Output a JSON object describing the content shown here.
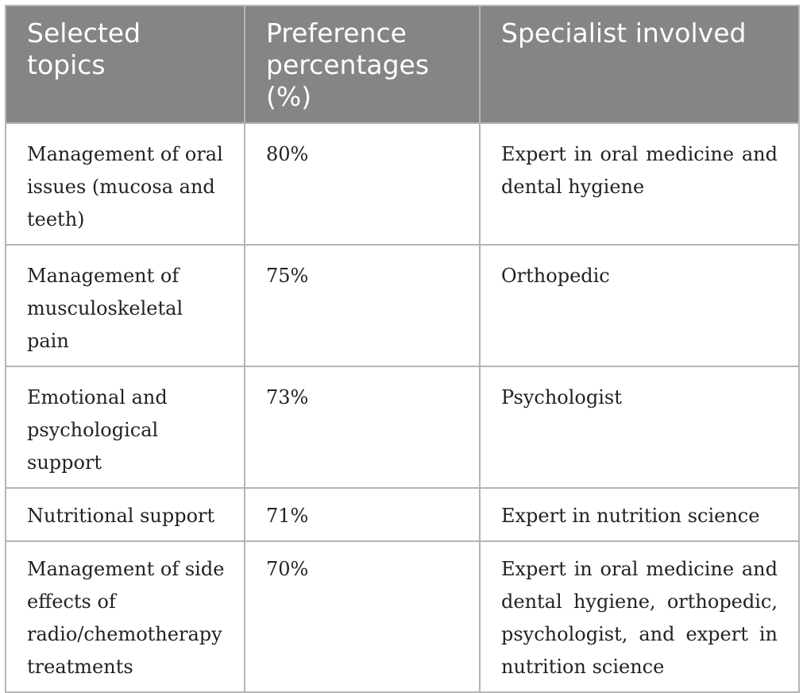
{
  "table": {
    "headers": [
      "Selected topics",
      "Preference percentages (%)",
      "Specialist involved"
    ],
    "rows": [
      {
        "topic": "Management of oral issues (mucosa and teeth)",
        "percentage": "80%",
        "specialist": "Expert in oral medicine and dental hygiene"
      },
      {
        "topic": "Management of musculoskeletal pain",
        "percentage": "75%",
        "specialist": "Orthopedic"
      },
      {
        "topic": "Emotional and psychological support",
        "percentage": "73%",
        "specialist": "Psychologist"
      },
      {
        "topic": "Nutritional support",
        "percentage": "71%",
        "specialist": "Expert in nutrition science"
      },
      {
        "topic": "Management of side effects of radio/chemotherapy treatments",
        "percentage": "70%",
        "specialist": "Expert in oral medicine and dental hygiene, orthopedic, psychologist, and expert in nutrition science"
      }
    ]
  }
}
